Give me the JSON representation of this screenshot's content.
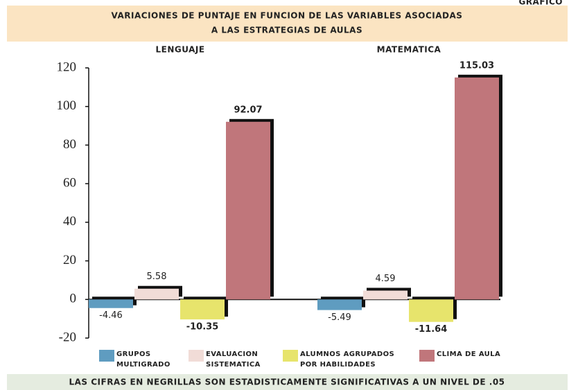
{
  "chart_data": {
    "type": "bar",
    "corner_label": "GRAFICO",
    "title": [
      "VARIACIONES DE PUNTAJE EN FUNCION DE LAS VARIABLES ASOCIADAS",
      "A LAS ESTRATEGIAS DE AULAS"
    ],
    "categories": [
      "LENGUAJE",
      "MATEMATICA"
    ],
    "series": [
      {
        "name": [
          "GRUPOS",
          "MULTIGRADO"
        ],
        "color": "#5f9cc0",
        "values": [
          -4.46,
          -5.49
        ],
        "bold": [
          false,
          false
        ]
      },
      {
        "name": [
          "EVALUACION",
          "SISTEMATICA"
        ],
        "color": "#f1dcd7",
        "values": [
          5.58,
          4.59
        ],
        "bold": [
          false,
          false
        ]
      },
      {
        "name": [
          "ALUMNOS AGRUPADOS",
          "POR HABILIDADES"
        ],
        "color": "#e7e46c",
        "values": [
          -10.35,
          -11.64
        ],
        "bold": [
          true,
          true
        ]
      },
      {
        "name": [
          "CLIMA DE AULA"
        ],
        "color": "#c0767b",
        "values": [
          92.07,
          115.03
        ],
        "bold": [
          true,
          true
        ]
      }
    ],
    "ylim": [
      -20,
      120
    ],
    "yticks": [
      -20,
      0,
      20,
      40,
      60,
      80,
      100,
      120
    ],
    "note": "LAS CIFRAS EN NEGRILLAS SON ESTADISTICAMENTE SIGNIFICATIVAS A UN NIVEL DE .05"
  }
}
